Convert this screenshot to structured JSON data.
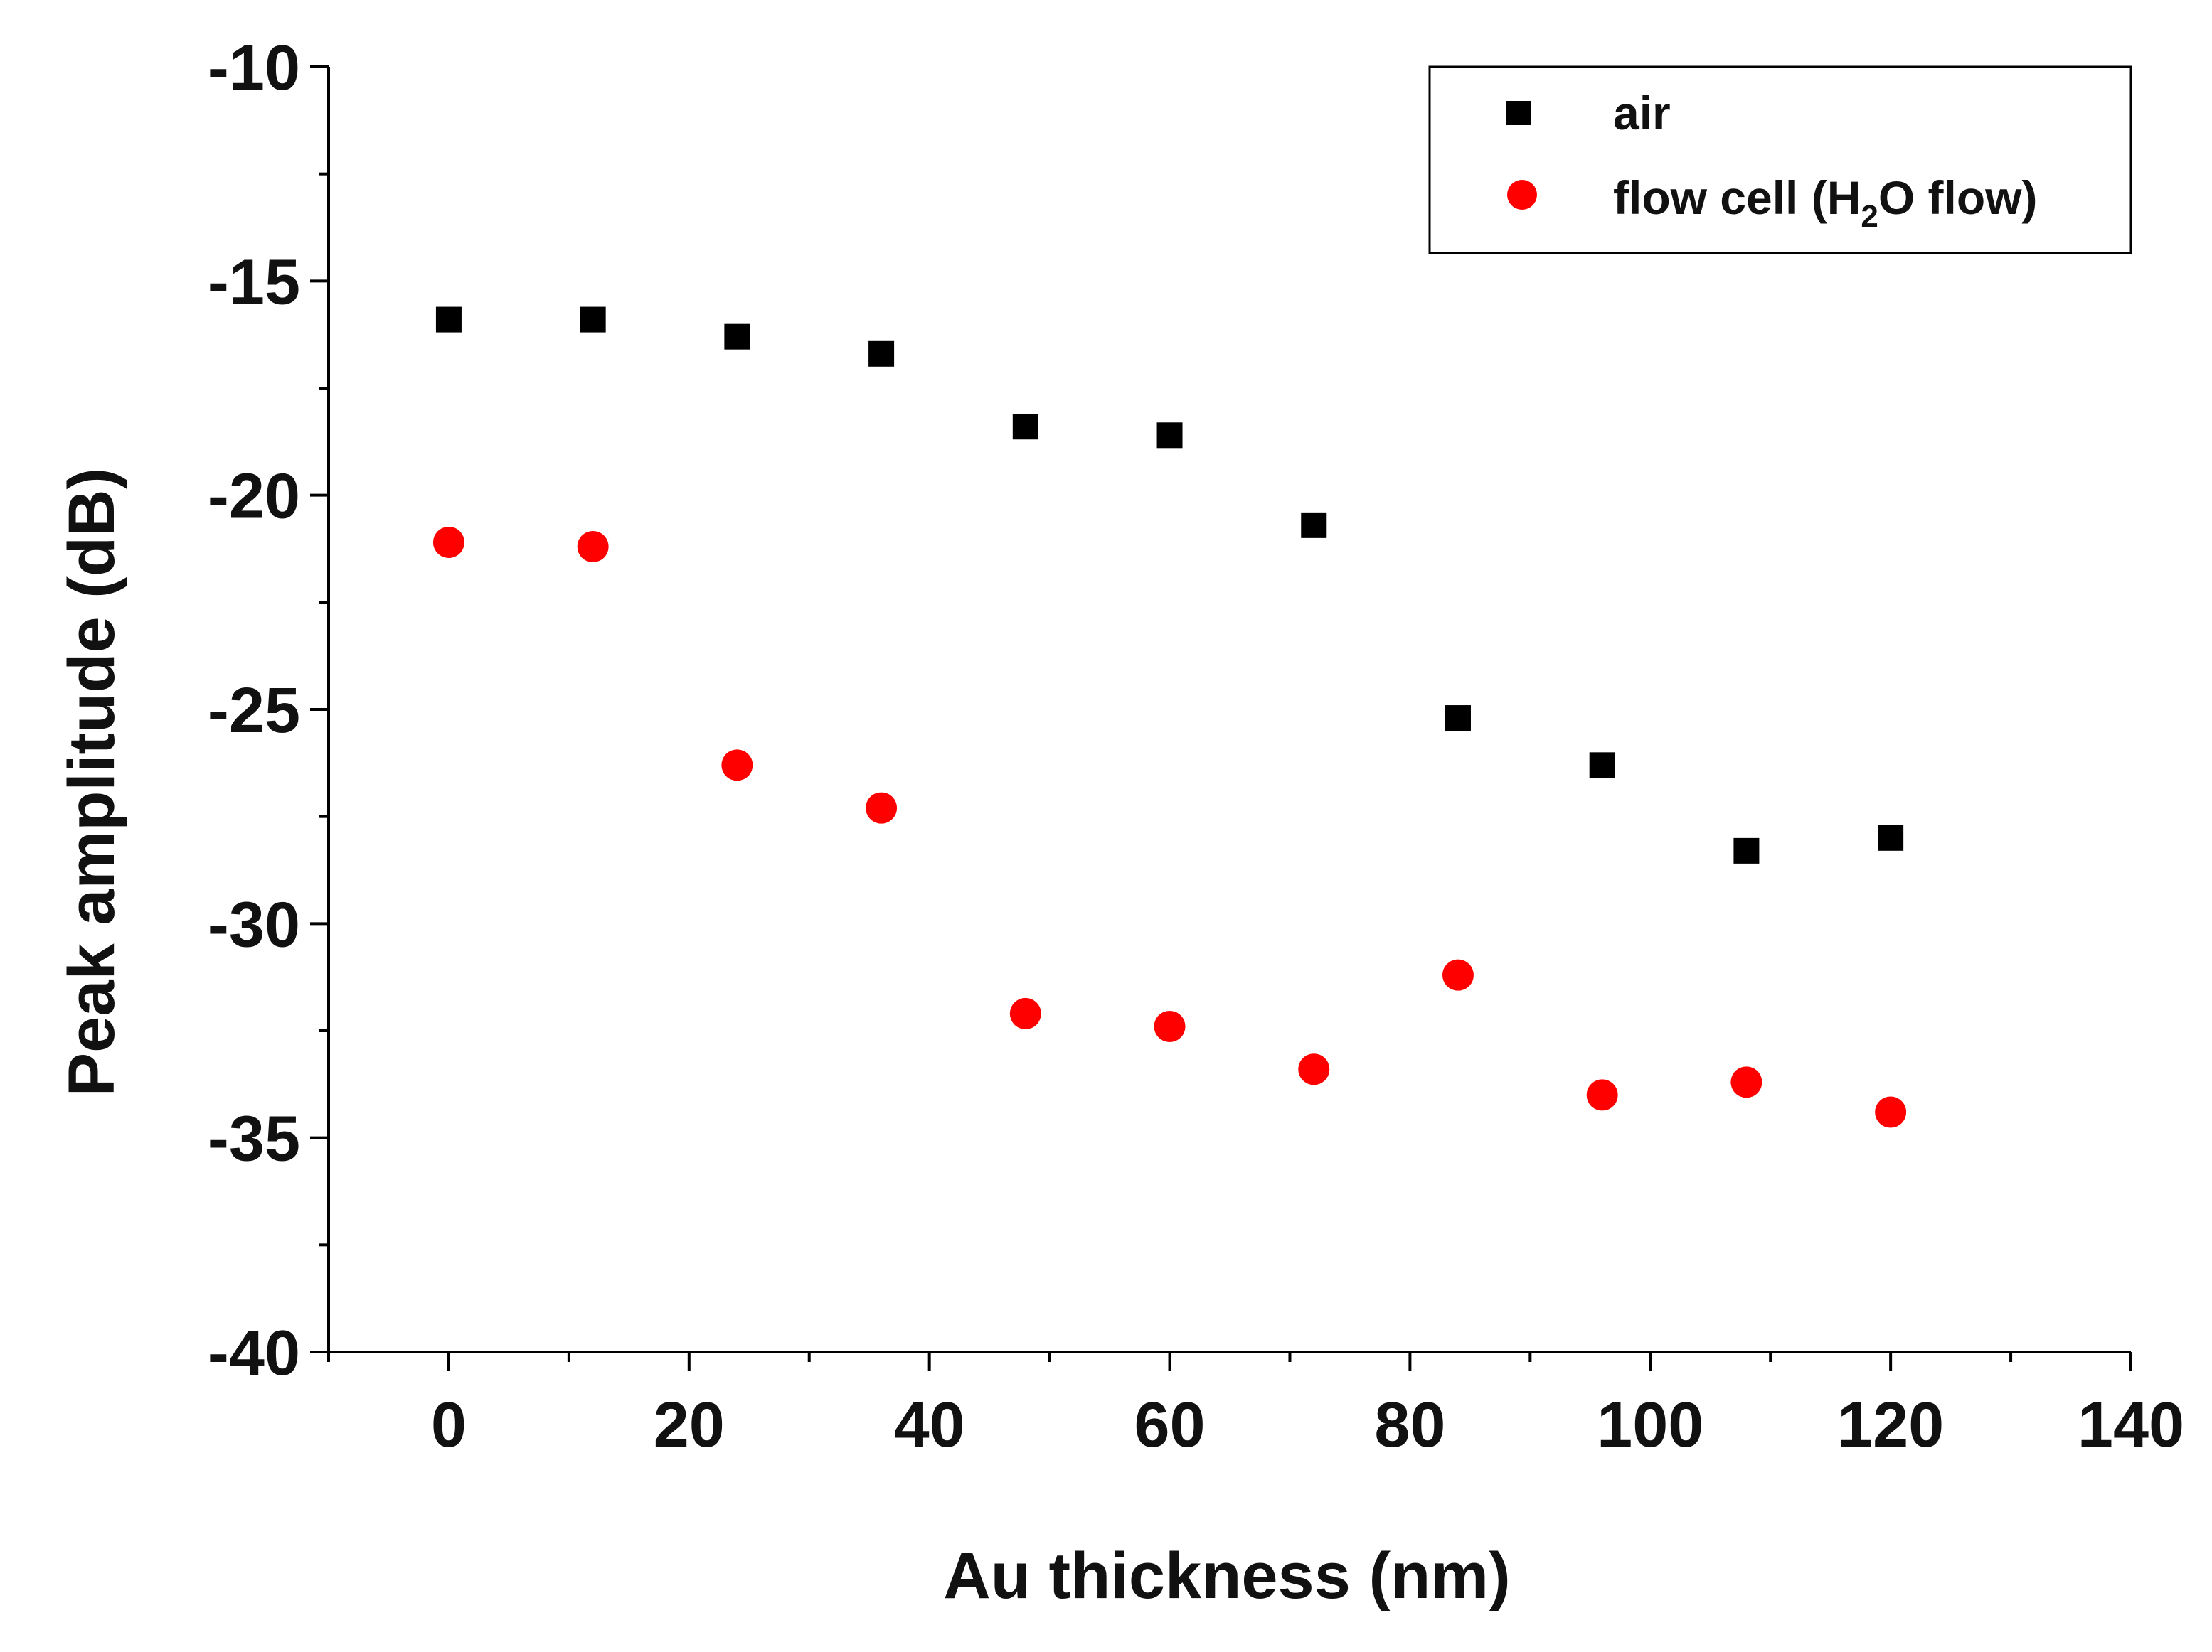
{
  "chart_data": {
    "type": "scatter",
    "title": "",
    "xlabel": "Au thickness (nm)",
    "ylabel": "Peak amplitude (dB)",
    "xlim": [
      -10,
      140
    ],
    "ylim": [
      -40,
      -10
    ],
    "x_ticks": [
      0,
      20,
      40,
      60,
      80,
      100,
      120,
      140
    ],
    "y_ticks": [
      -10,
      -15,
      -20,
      -25,
      -30,
      -35,
      -40
    ],
    "x_minor_step": 10,
    "y_minor_step": 2.5,
    "grid": false,
    "legend_position": "top-right",
    "series": [
      {
        "name": "air",
        "marker": "square",
        "color": "#000000",
        "x": [
          0,
          12,
          24,
          36,
          48,
          60,
          72,
          84,
          96,
          108,
          120
        ],
        "y": [
          -15.9,
          -15.9,
          -16.3,
          -16.7,
          -18.4,
          -18.6,
          -20.7,
          -25.2,
          -26.3,
          -28.3,
          -28.0
        ]
      },
      {
        "name": "flow cell (H2O flow)",
        "legend_label": {
          "prefix": "flow cell (H",
          "subscript": "2",
          "suffix": "O flow)"
        },
        "marker": "circle",
        "color": "#ff0000",
        "x": [
          0,
          12,
          24,
          36,
          48,
          60,
          72,
          84,
          96,
          108,
          120
        ],
        "y": [
          -21.1,
          -21.2,
          -26.3,
          -27.3,
          -32.1,
          -32.4,
          -33.4,
          -31.2,
          -34.0,
          -33.7,
          -34.4
        ]
      }
    ]
  }
}
